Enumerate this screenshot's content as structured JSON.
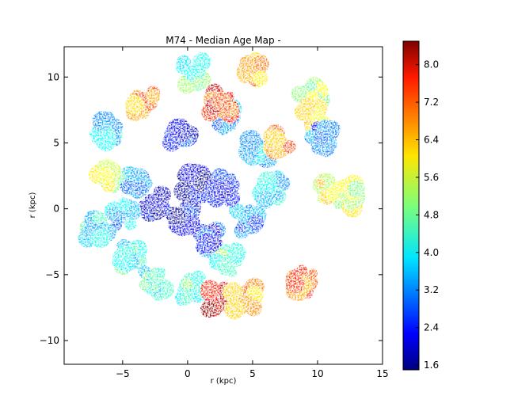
{
  "chart_data": {
    "type": "heatmap",
    "title": "M74 - Median Age Map -",
    "xlabel": "r (kpc)",
    "ylabel": "r (kpc)",
    "xlim": [
      -9.5,
      15
    ],
    "ylim": [
      -11.8,
      12.3
    ],
    "xticks": [
      -5,
      0,
      5,
      10,
      15
    ],
    "xtick_labels": [
      "−5",
      "0",
      "5",
      "10",
      "15"
    ],
    "yticks": [
      10,
      5,
      0,
      -5,
      -10
    ],
    "ytick_labels": [
      "10",
      "5",
      "0",
      "−5",
      "−10"
    ],
    "colorbar": {
      "min": 1.5,
      "max": 8.5,
      "ticks": [
        1.6,
        2.4,
        3.2,
        4.0,
        4.8,
        5.6,
        6.4,
        7.2,
        8.0
      ],
      "tick_labels": [
        "1.6",
        "2.4",
        "3.2",
        "4.0",
        "4.8",
        "5.6",
        "6.4",
        "7.2",
        "8.0"
      ],
      "colormap": "jet"
    },
    "grid": false,
    "regions": [
      {
        "x": -4.0,
        "y": 2.0,
        "value": 3.2
      },
      {
        "x": -0.5,
        "y": 5.5,
        "value": 2.6
      },
      {
        "x": 3.0,
        "y": 7.0,
        "value": 3.4
      },
      {
        "x": 5.5,
        "y": 4.5,
        "value": 3.6
      },
      {
        "x": 6.5,
        "y": 1.5,
        "value": 4.0
      },
      {
        "x": 4.5,
        "y": -1.0,
        "value": 3.4
      },
      {
        "x": 2.0,
        "y": -2.5,
        "value": 2.8
      },
      {
        "x": -0.5,
        "y": -0.5,
        "value": 2.2
      },
      {
        "x": -2.5,
        "y": 0.5,
        "value": 2.0
      },
      {
        "x": 0.5,
        "y": 2.0,
        "value": 2.0
      },
      {
        "x": 2.5,
        "y": 1.5,
        "value": 2.3
      },
      {
        "x": -5.0,
        "y": -0.5,
        "value": 3.6
      },
      {
        "x": -4.5,
        "y": -3.5,
        "value": 4.2
      },
      {
        "x": -2.5,
        "y": -5.5,
        "value": 4.4
      },
      {
        "x": 0.5,
        "y": -6.0,
        "value": 4.6
      },
      {
        "x": 2.5,
        "y": -6.8,
        "value": 7.8
      },
      {
        "x": 4.3,
        "y": -6.8,
        "value": 6.6
      },
      {
        "x": -6.0,
        "y": 2.5,
        "value": 5.4
      },
      {
        "x": -7.0,
        "y": -1.5,
        "value": 4.2
      },
      {
        "x": -3.5,
        "y": 8.0,
        "value": 6.6
      },
      {
        "x": 2.5,
        "y": 8.0,
        "value": 7.4
      },
      {
        "x": 5.0,
        "y": 10.5,
        "value": 6.4
      },
      {
        "x": 0.5,
        "y": 10.3,
        "value": 4.6
      },
      {
        "x": 9.3,
        "y": 8.5,
        "value": 5.2
      },
      {
        "x": 9.5,
        "y": 7.0,
        "value": 5.8
      },
      {
        "x": 10.2,
        "y": 5.5,
        "value": 3.0
      },
      {
        "x": 7.0,
        "y": 5.0,
        "value": 6.6
      },
      {
        "x": 11.0,
        "y": 1.5,
        "value": 5.8
      },
      {
        "x": 12.2,
        "y": 1.0,
        "value": 5.6
      },
      {
        "x": 8.9,
        "y": -5.5,
        "value": 7.0
      },
      {
        "x": -6.5,
        "y": 6.0,
        "value": 3.8
      },
      {
        "x": 3.0,
        "y": -4.0,
        "value": 4.8
      }
    ]
  }
}
